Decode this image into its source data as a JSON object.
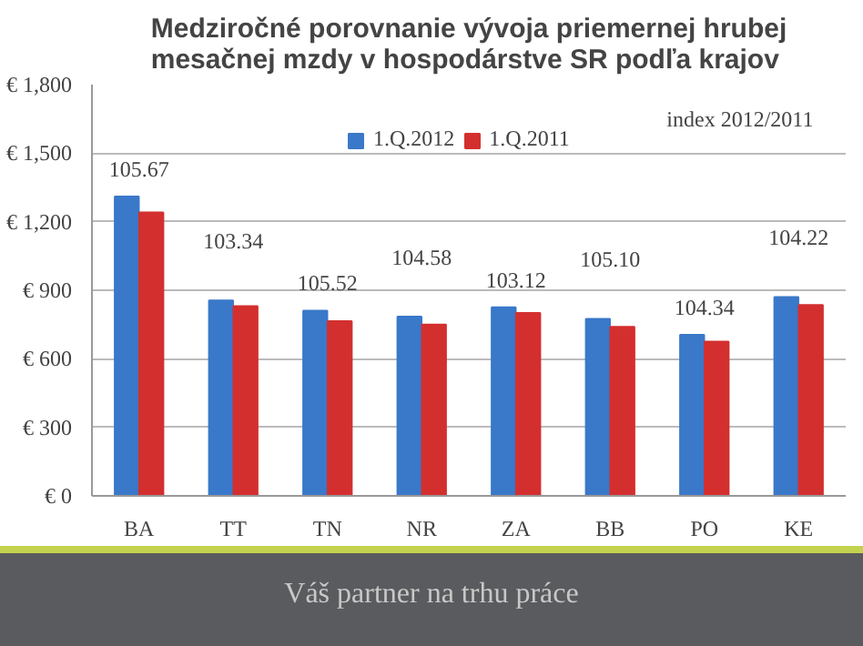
{
  "chart_data": {
    "type": "bar",
    "title": "Medziročné porovnanie vývoja priemernej hrubej\nmesačnej mzdy v hospodárstve SR podľa krajov",
    "categories": [
      "BA",
      "TT",
      "TN",
      "NR",
      "ZA",
      "BB",
      "PO",
      "KE"
    ],
    "series": [
      {
        "name": "1.Q.2012",
        "color": "#3a78c9",
        "values": [
          1310,
          855,
          810,
          785,
          825,
          775,
          705,
          870
        ]
      },
      {
        "name": "1.Q.2011",
        "color": "#d42f2f",
        "values": [
          1240,
          830,
          765,
          750,
          800,
          740,
          675,
          835
        ]
      }
    ],
    "ylim": [
      0,
      1800
    ],
    "yticks": [
      {
        "value": 0,
        "label": "€ 0"
      },
      {
        "value": 300,
        "label": "€ 300"
      },
      {
        "value": 600,
        "label": "€ 600"
      },
      {
        "value": 900,
        "label": "€ 900"
      },
      {
        "value": 1200,
        "label": "€ 1,200"
      },
      {
        "value": 1500,
        "label": "€ 1,500"
      },
      {
        "value": 1800,
        "label": "€ 1,800"
      }
    ],
    "grid": "y",
    "legend": "top",
    "annotations": [
      "index 2012/2011",
      "105.67",
      "103.34",
      "105.52",
      "104.58",
      "103.12",
      "105.10",
      "104.34",
      "104.22",
      "Váš partner na trhu práce"
    ]
  }
}
